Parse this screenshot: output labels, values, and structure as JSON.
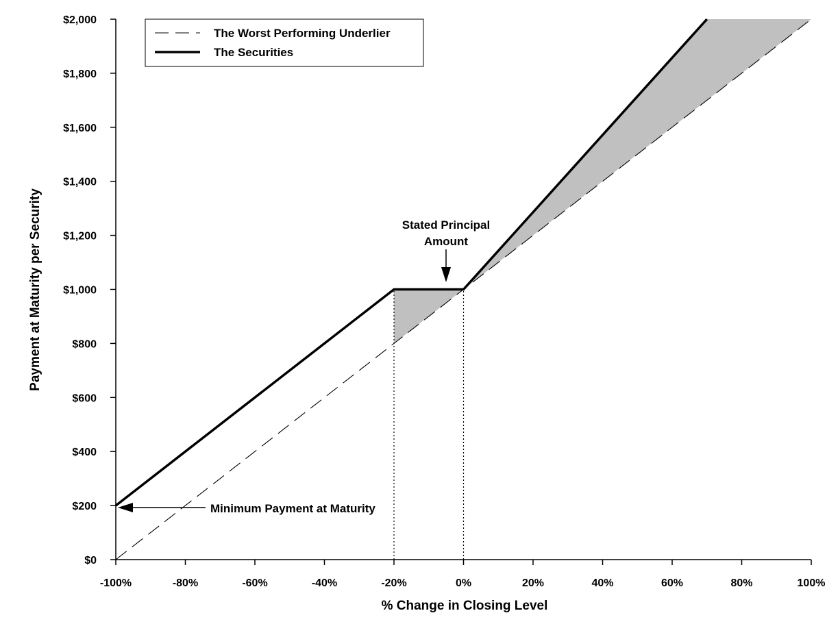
{
  "chart_data": {
    "type": "line",
    "title": "",
    "xlabel": "% Change in Closing Level",
    "ylabel": "Payment at Maturity per Security",
    "xlim": [
      -100,
      100
    ],
    "ylim": [
      0,
      2000
    ],
    "x_ticks": [
      -100,
      -80,
      -60,
      -40,
      -20,
      0,
      20,
      40,
      60,
      80,
      100
    ],
    "x_tick_labels": [
      "-100%",
      "-80%",
      "-60%",
      "-40%",
      "-20%",
      "0%",
      "20%",
      "40%",
      "60%",
      "80%",
      "100%"
    ],
    "y_ticks": [
      0,
      200,
      400,
      600,
      800,
      1000,
      1200,
      1400,
      1600,
      1800,
      2000
    ],
    "y_tick_labels": [
      "$0",
      "$200",
      "$400",
      "$600",
      "$800",
      "$1,000",
      "$1,200",
      "$1,400",
      "$1,600",
      "$1,800",
      "$2,000"
    ],
    "grid": false,
    "legend_position": "top-left",
    "series": [
      {
        "name": "The Worst Performing Underlier",
        "style": "dashed",
        "color": "#000000",
        "x": [
          -100,
          100
        ],
        "y": [
          0,
          2000
        ]
      },
      {
        "name": "The Securities",
        "style": "solid-thick",
        "color": "#000000",
        "x": [
          -100,
          -20,
          0,
          70
        ],
        "y": [
          200,
          1000,
          1000,
          2000
        ]
      }
    ],
    "shaded_regions": [
      {
        "color": "#c0c0c0",
        "x": [
          -20,
          0,
          -20
        ],
        "y": [
          1000,
          1000,
          800
        ]
      },
      {
        "color": "#c0c0c0",
        "x": [
          0,
          70,
          100
        ],
        "y": [
          1000,
          2000,
          2000
        ]
      }
    ],
    "reference_lines": [
      {
        "x": -20,
        "y_from": 0,
        "y_to": 1000,
        "style": "dotted"
      },
      {
        "x": 0,
        "y_from": 0,
        "y_to": 1000,
        "style": "dotted"
      }
    ],
    "annotations": [
      {
        "id": "stated",
        "lines": [
          "Stated Principal",
          "Amount"
        ],
        "point_x": -5,
        "point_y": 1000
      },
      {
        "id": "minimum",
        "lines": [
          "Minimum Payment at Maturity"
        ],
        "point_x": -100,
        "point_y": 200
      }
    ]
  }
}
